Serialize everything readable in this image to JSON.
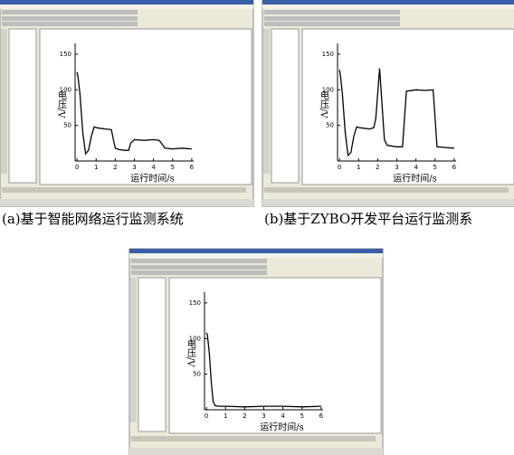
{
  "chart_data": [
    {
      "type": "line",
      "caption": "(a)基于智能网络运行监测系统",
      "xlabel": "运行时间/s",
      "ylabel": "电压/V",
      "x": [
        0,
        0.05,
        0.15,
        0.3,
        0.45,
        0.6,
        0.75,
        0.9,
        1.0,
        1.2,
        1.5,
        1.8,
        1.9,
        2.0,
        2.2,
        2.5,
        2.7,
        2.8,
        3.0,
        3.5,
        4.0,
        4.3,
        4.5,
        4.6,
        5.0,
        5.5,
        6.0
      ],
      "series": [
        {
          "color": "#000000",
          "values": [
            125,
            118,
            95,
            40,
            10,
            15,
            35,
            48,
            47,
            46,
            45,
            44,
            30,
            18,
            16,
            15,
            15,
            25,
            30,
            29,
            30,
            29,
            22,
            18,
            17,
            18,
            17
          ]
        }
      ],
      "xlim": [
        -0.1,
        6.1
      ],
      "ylim": [
        0,
        160
      ],
      "xticks": [
        0,
        1,
        2,
        3,
        4,
        5,
        6
      ],
      "yticks": [
        50,
        100,
        150
      ]
    },
    {
      "type": "line",
      "caption": "(b)基于ZYBO开发平台运行监测系",
      "xlabel": "运行时间/s",
      "ylabel": "电压/V",
      "x": [
        0,
        0.05,
        0.15,
        0.3,
        0.45,
        0.6,
        0.75,
        0.9,
        1.0,
        1.3,
        1.6,
        1.8,
        1.9,
        2.0,
        2.1,
        2.2,
        2.35,
        2.5,
        3.0,
        3.3,
        3.4,
        3.5,
        4.0,
        4.5,
        4.9,
        5.0,
        5.1,
        5.5,
        6.0
      ],
      "series": [
        {
          "color": "#000000",
          "values": [
            128,
            120,
            95,
            40,
            8,
            12,
            35,
            48,
            47,
            46,
            45,
            47,
            60,
            95,
            130,
            90,
            30,
            22,
            20,
            20,
            60,
            98,
            100,
            99,
            100,
            60,
            20,
            19,
            18
          ]
        }
      ],
      "xlim": [
        -0.1,
        6.1
      ],
      "ylim": [
        0,
        160
      ],
      "xticks": [
        0,
        1,
        2,
        3,
        4,
        5,
        6
      ],
      "yticks": [
        50,
        100,
        150
      ]
    },
    {
      "type": "line",
      "xlabel": "运行时间/s",
      "ylabel": "电压/V",
      "x": [
        0,
        0.05,
        0.15,
        0.25,
        0.35,
        0.45,
        0.6,
        1,
        2,
        3,
        4,
        5,
        6
      ],
      "series": [
        {
          "color": "#000000",
          "values": [
            108,
            105,
            80,
            40,
            12,
            6,
            5,
            5,
            4,
            5,
            5,
            4,
            5
          ]
        }
      ],
      "xlim": [
        -0.1,
        6.1
      ],
      "ylim": [
        0,
        160
      ],
      "xticks": [
        0,
        1,
        2,
        3,
        4,
        5,
        6
      ],
      "yticks": [
        50,
        100,
        150
      ]
    }
  ]
}
